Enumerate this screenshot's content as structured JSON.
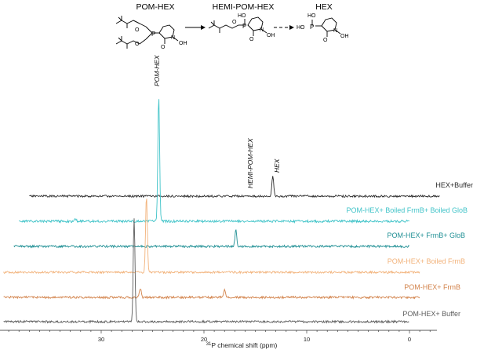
{
  "scheme": {
    "compounds": [
      "POM-HEX",
      "HEMI-POM-HEX",
      "HEX"
    ],
    "atoms": {
      "P": "P",
      "O": "O",
      "N": "N",
      "OH": "OH",
      "HO": "HO"
    }
  },
  "chart_data": {
    "type": "line",
    "title": "",
    "xlabel": "³¹P chemical shift (ppm)",
    "xlabel_parts": {
      "sup": "31",
      "rest": "P chemical shift (ppm)"
    },
    "ylabel": "",
    "x_reversed": true,
    "xlim": [
      40,
      -3
    ],
    "xticks": [
      30,
      20,
      10,
      0
    ],
    "grid": false,
    "series": [
      {
        "name": "HEX+Buffer",
        "color": "#2b2b2b",
        "x_range": [
          37,
          -3
        ],
        "peaks": [
          {
            "ppm": 13.3,
            "height": 26
          }
        ],
        "noise": 1.3,
        "seed": 11
      },
      {
        "name": "POM-HEX+ Boiled FrmB+ Boiled GloB",
        "color": "#3fc3c8",
        "x_range": [
          38,
          0
        ],
        "peaks": [
          {
            "ppm": 24.4,
            "height": 160
          },
          {
            "ppm": 32.5,
            "height": 3
          }
        ],
        "noise": 1.5,
        "seed": 23
      },
      {
        "name": "POM-HEX+ FrmB+ GloB",
        "color": "#1f8f94",
        "x_range": [
          38.5,
          0
        ],
        "peaks": [
          {
            "ppm": 16.9,
            "height": 21
          }
        ],
        "noise": 1.4,
        "seed": 37
      },
      {
        "name": "POM-HEX+ Boiled FrmB",
        "color": "#f2b27a",
        "x_range": [
          39.5,
          -1
        ],
        "peaks": [
          {
            "ppm": 25.6,
            "height": 97
          }
        ],
        "noise": 1.3,
        "seed": 41
      },
      {
        "name": "POM-HEX+ FrmB",
        "color": "#d2824a",
        "x_range": [
          39.5,
          -1
        ],
        "peaks": [
          {
            "ppm": 26.2,
            "height": 12
          },
          {
            "ppm": 18.0,
            "height": 11
          }
        ],
        "noise": 1.4,
        "seed": 53
      },
      {
        "name": "POM-HEX+ Buffer",
        "color": "#5c5c5c",
        "x_range": [
          39.5,
          0
        ],
        "peaks": [
          {
            "ppm": 26.8,
            "height": 132
          }
        ],
        "noise": 1.3,
        "seed": 67
      }
    ],
    "annotations": [
      {
        "text": "POM-HEX",
        "ppm": 24.4
      },
      {
        "text": "HEMI-POM-HEX",
        "ppm": 16.9
      },
      {
        "text": "HEX",
        "ppm": 13.3
      }
    ]
  }
}
